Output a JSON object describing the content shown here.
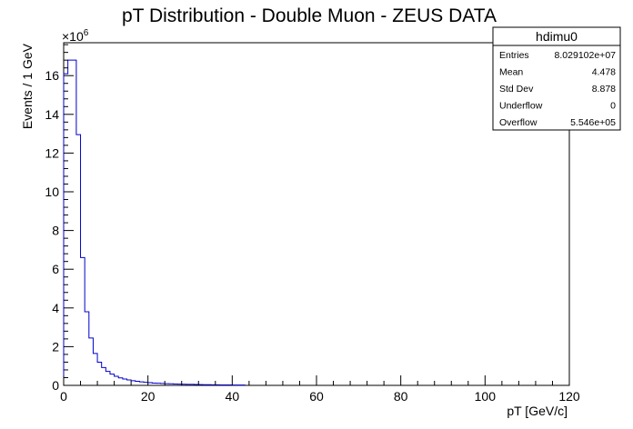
{
  "chart_data": {
    "type": "bar",
    "title": "pT Distribution - Double Muon - ZEUS DATA",
    "xlabel": "pT [GeV/c]",
    "ylabel": "Events / 1 GeV",
    "y_multiplier": "×10",
    "y_exponent": "6",
    "xlim": [
      0,
      120
    ],
    "ylim": [
      0,
      17.7
    ],
    "x_ticks": [
      "0",
      "20",
      "40",
      "60",
      "80",
      "100",
      "120"
    ],
    "y_ticks": [
      "0",
      "2",
      "4",
      "6",
      "8",
      "10",
      "12",
      "14",
      "16"
    ],
    "bin_width": 1,
    "x_start": 0,
    "values": [
      16.1,
      16.8,
      16.8,
      12.95,
      6.6,
      3.8,
      2.45,
      1.65,
      1.2,
      0.92,
      0.72,
      0.58,
      0.47,
      0.39,
      0.33,
      0.28,
      0.24,
      0.21,
      0.18,
      0.16,
      0.14,
      0.12,
      0.11,
      0.1,
      0.09,
      0.08,
      0.07,
      0.065,
      0.06,
      0.055,
      0.05,
      0.045,
      0.04,
      0.037,
      0.034,
      0.031,
      0.028,
      0.025,
      0.023,
      0.021,
      0.019,
      0.017,
      0.015
    ],
    "line_color": "#0000cc",
    "grid": false,
    "legend": "top-right"
  },
  "stats": {
    "name": "hdimu0",
    "rows": [
      {
        "label": "Entries",
        "value": "8.029102e+07"
      },
      {
        "label": "Mean",
        "value": "4.478"
      },
      {
        "label": "Std Dev",
        "value": "8.878"
      },
      {
        "label": "Underflow",
        "value": "0"
      },
      {
        "label": "Overflow",
        "value": "5.546e+05"
      }
    ]
  }
}
